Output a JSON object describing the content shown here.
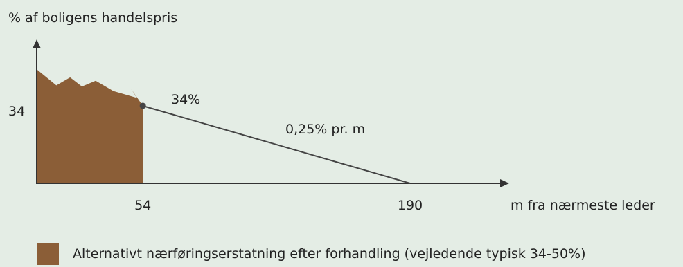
{
  "chart_data": {
    "type": "area",
    "ylabel": "% af boligens handelspris",
    "xlabel": "m fra nærmeste leder",
    "y_ticks": [
      "34"
    ],
    "x_ticks": [
      "54",
      "190"
    ],
    "line": {
      "points": [
        {
          "x": 54,
          "y": 34
        },
        {
          "x": 190,
          "y": 0
        }
      ],
      "point_label": "34%",
      "slope_label": "0,25% pr. m"
    },
    "area": {
      "x_range": [
        0,
        54
      ],
      "y_range_typical": [
        34,
        50
      ],
      "color": "#8b5e37"
    },
    "legend": {
      "label": "Alternativt nærføringserstatning efter forhandling (vejledende typisk 34-50%)"
    },
    "colors": {
      "axis": "#333333",
      "line": "#444444",
      "background": "#e4ede5"
    }
  }
}
